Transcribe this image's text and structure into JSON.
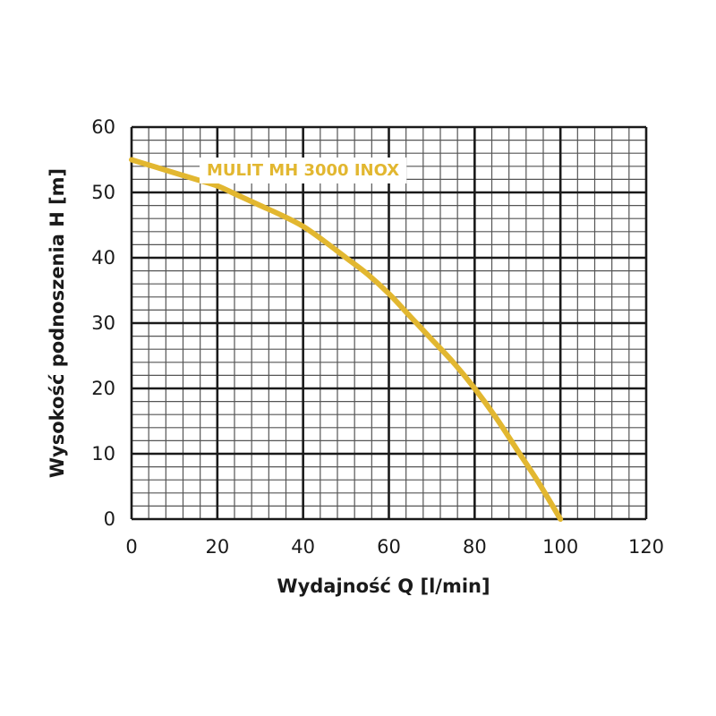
{
  "chart_data": {
    "type": "line",
    "xlabel": "Wydajność Q [l/min]",
    "ylabel": "Wysokość podnoszenia H [m]",
    "xlim": [
      0,
      120
    ],
    "ylim": [
      0,
      60
    ],
    "x_ticks": [
      "0",
      "20",
      "40",
      "60",
      "80",
      "100",
      "120"
    ],
    "y_ticks": [
      "0",
      "10",
      "20",
      "30",
      "40",
      "50",
      "60"
    ],
    "grid": true,
    "series": [
      {
        "name": "MULIT MH 3000 INOX",
        "color": "#e2b730",
        "x": [
          0,
          5,
          10,
          15,
          20,
          25,
          30,
          35,
          40,
          45,
          50,
          55,
          60,
          65,
          70,
          75,
          80,
          85,
          90,
          95,
          100
        ],
        "y": [
          55,
          54,
          53,
          52,
          51,
          49.5,
          48,
          46.5,
          44.8,
          42.5,
          40,
          37.5,
          34.5,
          31,
          27.5,
          24,
          20,
          15.5,
          10.5,
          5.5,
          0
        ]
      }
    ]
  }
}
